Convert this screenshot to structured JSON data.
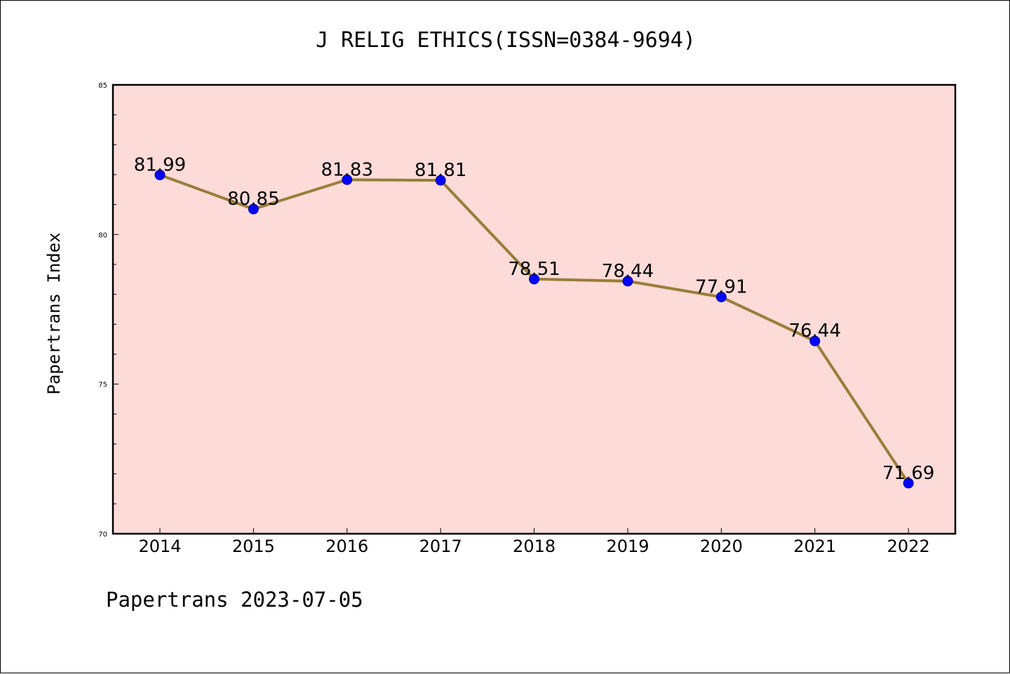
{
  "footer": "Papertrans 2023-07-05",
  "chart_data": {
    "type": "line",
    "title": "J RELIG ETHICS(ISSN=0384-9694)",
    "xlabel": "",
    "ylabel": "Papertrans Index",
    "x": [
      "2014",
      "2015",
      "2016",
      "2017",
      "2018",
      "2019",
      "2020",
      "2021",
      "2022"
    ],
    "values": [
      81.99,
      80.85,
      81.83,
      81.81,
      78.51,
      78.44,
      77.91,
      76.44,
      71.69
    ],
    "data_labels": [
      "81.99",
      "80.85",
      "81.83",
      "81.81",
      "78.51",
      "78.44",
      "77.91",
      "76.44",
      "71.69"
    ],
    "ylim": [
      70,
      85
    ],
    "yticks": [
      "70",
      "75",
      "80",
      "85"
    ],
    "grid": false,
    "legend": "none",
    "colors": {
      "plot_background": "#fddbd8",
      "line": "#9a7d3a",
      "marker": "#0000ff",
      "axes": "#000000"
    }
  }
}
